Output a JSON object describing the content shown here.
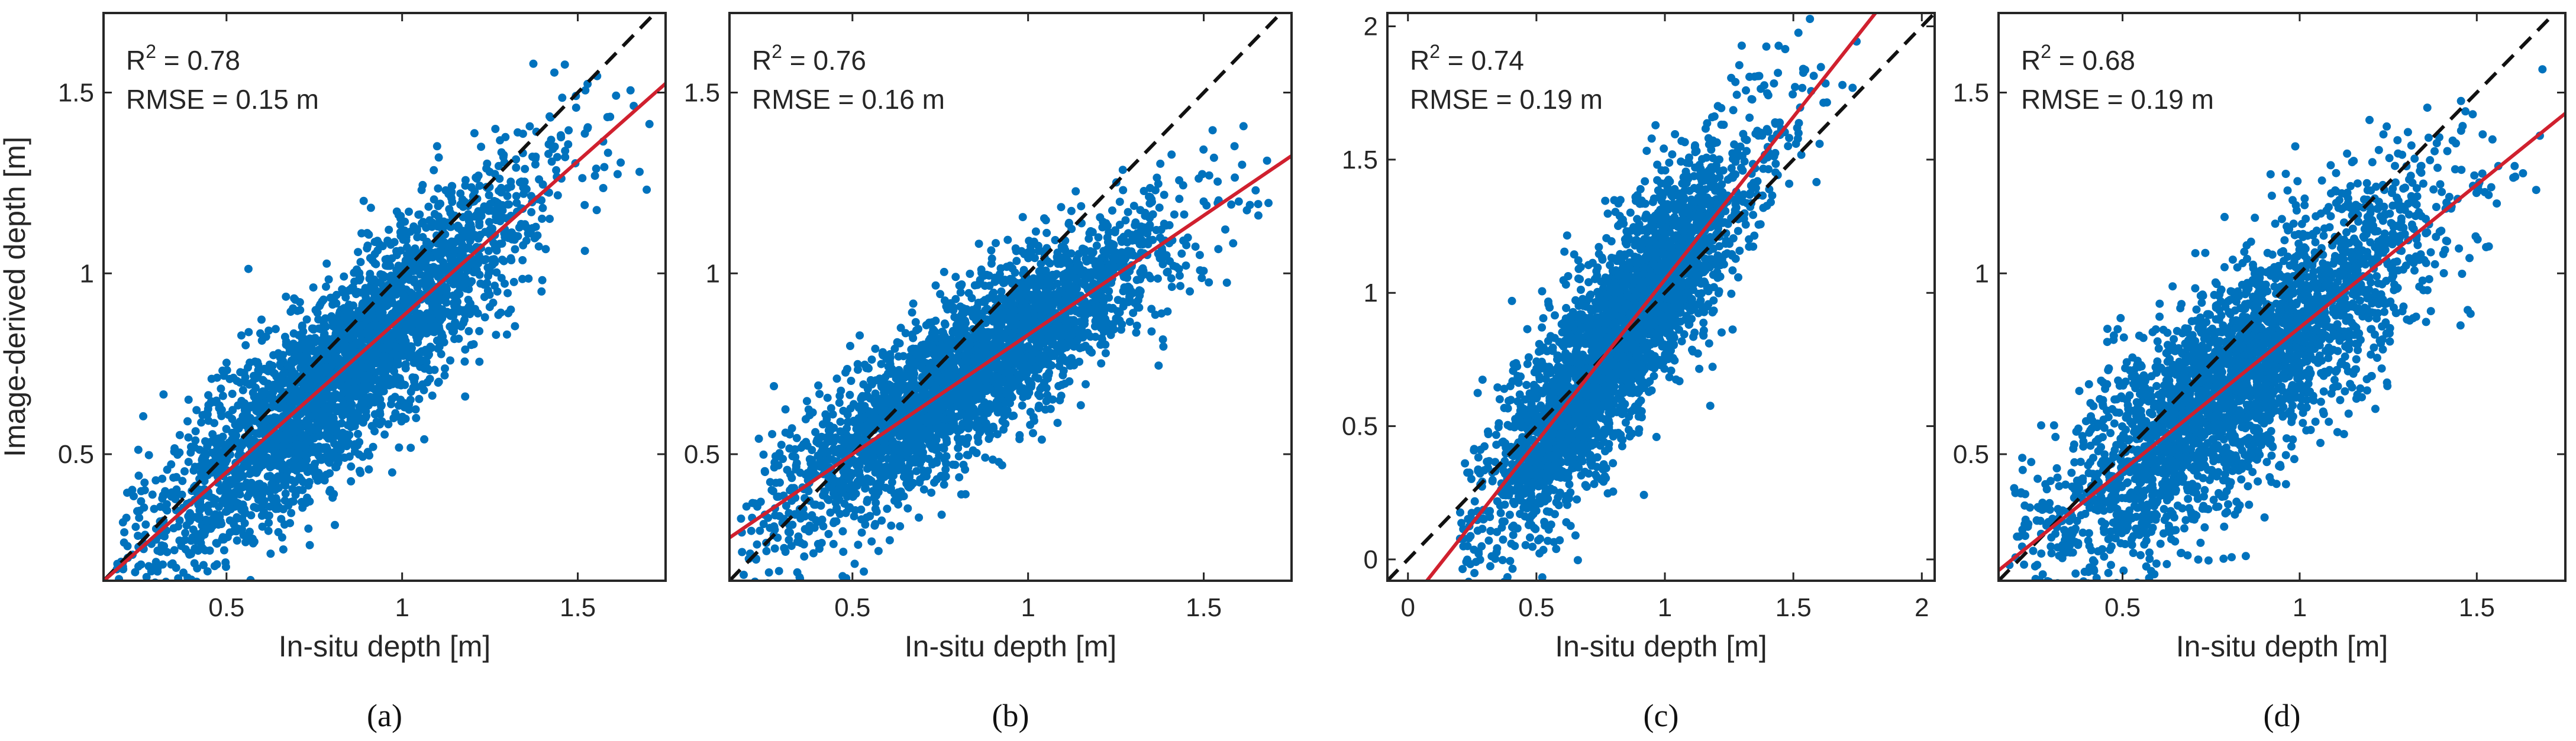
{
  "colors": {
    "points": "#0072BD",
    "fit_line": "#D0202E",
    "identity_line": "#111111",
    "axes": "#262626",
    "background": "#FFFFFF"
  },
  "chart_data": [
    {
      "type": "scatter",
      "panel": "(a)",
      "xlabel": "In-situ depth [m]",
      "ylabel": "Image-derived depth [m]",
      "xlim": [
        0.15,
        1.75
      ],
      "ylim": [
        0.15,
        1.72
      ],
      "xticks": [
        0.5,
        1,
        1.5
      ],
      "xtick_labels": [
        "0.5",
        "1",
        "1.5"
      ],
      "yticks": [
        0.5,
        1,
        1.5
      ],
      "ytick_labels": [
        "0.5",
        "1",
        "1.5"
      ],
      "r2_label": "R",
      "r2_sup": "2",
      "r2_value": " = 0.78",
      "rmse_label": "RMSE = 0.15 m",
      "fit": {
        "slope": 0.86,
        "intercept": 0.02
      },
      "identity": true,
      "points": {
        "count": 3000,
        "seed": 11,
        "x_mean": 0.82,
        "x_sd": 0.28,
        "x_min": 0.18,
        "x_max": 1.72,
        "slope": 0.86,
        "intercept": 0.02,
        "noise_sd": 0.13
      }
    },
    {
      "type": "scatter",
      "panel": "(b)",
      "xlabel": "In-situ depth [m]",
      "ylabel": "",
      "xlim": [
        0.15,
        1.75
      ],
      "ylim": [
        0.15,
        1.72
      ],
      "xticks": [
        0.5,
        1,
        1.5
      ],
      "xtick_labels": [
        "0.5",
        "1",
        "1.5"
      ],
      "yticks": [
        0.5,
        1,
        1.5
      ],
      "ytick_labels": [
        "0.5",
        "1",
        "1.5"
      ],
      "r2_label": "R",
      "r2_sup": "2",
      "r2_value": " = 0.76",
      "rmse_label": "RMSE = 0.16 m",
      "fit": {
        "slope": 0.66,
        "intercept": 0.17
      },
      "identity": true,
      "points": {
        "count": 3000,
        "seed": 23,
        "x_mean": 0.82,
        "x_sd": 0.28,
        "x_min": 0.18,
        "x_max": 1.72,
        "slope": 0.66,
        "intercept": 0.17,
        "noise_sd": 0.11
      }
    },
    {
      "type": "scatter",
      "panel": "(c)",
      "xlabel": "In-situ depth [m]",
      "ylabel": "",
      "xlim": [
        -0.08,
        2.05
      ],
      "ylim": [
        -0.08,
        2.05
      ],
      "xticks": [
        0,
        0.5,
        1,
        1.5,
        2
      ],
      "xtick_labels": [
        "0",
        "0.5",
        "1",
        "1.5",
        "2"
      ],
      "yticks": [
        0,
        0.5,
        1,
        1.5,
        2
      ],
      "ytick_labels": [
        "0",
        "0.5",
        "1",
        "1.5",
        "2"
      ],
      "r2_label": "R",
      "r2_sup": "2",
      "r2_value": " = 0.74",
      "rmse_label": "RMSE = 0.19 m",
      "fit": {
        "slope": 1.22,
        "intercept": -0.17
      },
      "identity": true,
      "points": {
        "count": 3000,
        "seed": 37,
        "x_mean": 0.82,
        "x_sd": 0.27,
        "x_min": 0.2,
        "x_max": 1.75,
        "slope": 1.22,
        "intercept": -0.17,
        "noise_sd": 0.19
      }
    },
    {
      "type": "scatter",
      "panel": "(d)",
      "xlabel": "In-situ depth [m]",
      "ylabel": "",
      "xlim": [
        0.15,
        1.75
      ],
      "ylim": [
        0.15,
        1.72
      ],
      "xticks": [
        0.5,
        1,
        1.5
      ],
      "xtick_labels": [
        "0.5",
        "1",
        "1.5"
      ],
      "yticks": [
        0.5,
        1,
        1.5
      ],
      "ytick_labels": [
        "0.5",
        "1",
        "1.5"
      ],
      "r2_label": "R",
      "r2_sup": "2",
      "r2_value": " = 0.68",
      "rmse_label": "RMSE = 0.19 m",
      "fit": {
        "slope": 0.79,
        "intercept": 0.06
      },
      "identity": true,
      "points": {
        "count": 3000,
        "seed": 53,
        "x_mean": 0.82,
        "x_sd": 0.28,
        "x_min": 0.18,
        "x_max": 1.72,
        "slope": 0.79,
        "intercept": 0.06,
        "noise_sd": 0.15
      }
    }
  ]
}
